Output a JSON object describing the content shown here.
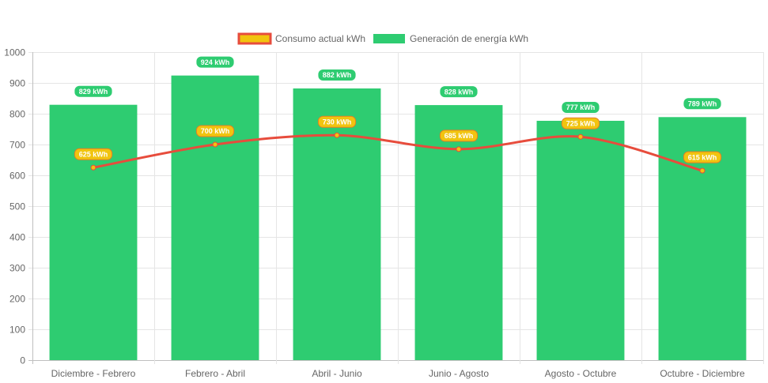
{
  "chart_data": {
    "type": "bar",
    "categories": [
      "Diciembre - Febrero",
      "Febrero - Abril",
      "Abril - Junio",
      "Junio - Agosto",
      "Agosto - Octubre",
      "Octubre - Diciembre"
    ],
    "series": [
      {
        "name": "Consumo actual kWh",
        "type": "line",
        "values": [
          625,
          700,
          730,
          685,
          725,
          615
        ],
        "labels": [
          "625 kWh",
          "700 kWh",
          "730 kWh",
          "685 kWh",
          "725 kWh",
          "615 kWh"
        ],
        "color": "#e74c3c",
        "fill_color": "#f1c40f"
      },
      {
        "name": "Generación de energía kWh",
        "type": "bar",
        "values": [
          829,
          924,
          882,
          828,
          777,
          789
        ],
        "labels": [
          "829 kWh",
          "924 kWh",
          "882 kWh",
          "828 kWh",
          "777 kWh",
          "789 kWh"
        ],
        "color": "#2ecc71"
      }
    ],
    "y_ticks": [
      "0",
      "100",
      "200",
      "300",
      "400",
      "500",
      "600",
      "700",
      "800",
      "900",
      "1000"
    ],
    "ylim": [
      0,
      1000
    ],
    "legend_position": "top-center",
    "grid": true,
    "title": "",
    "xlabel": "",
    "ylabel": ""
  }
}
